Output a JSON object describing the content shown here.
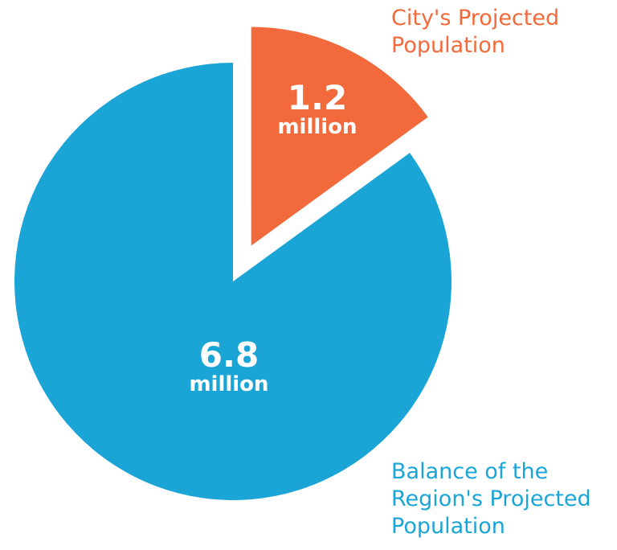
{
  "chart_data": {
    "type": "pie",
    "categories": [
      "City's Projected Population",
      "Balance of the Region's Projected Population"
    ],
    "values": [
      1.2,
      6.8
    ],
    "value_labels": [
      "1.2 million",
      "6.8 million"
    ],
    "colors": [
      "#f26a3b",
      "#1ba5d6"
    ]
  }
}
